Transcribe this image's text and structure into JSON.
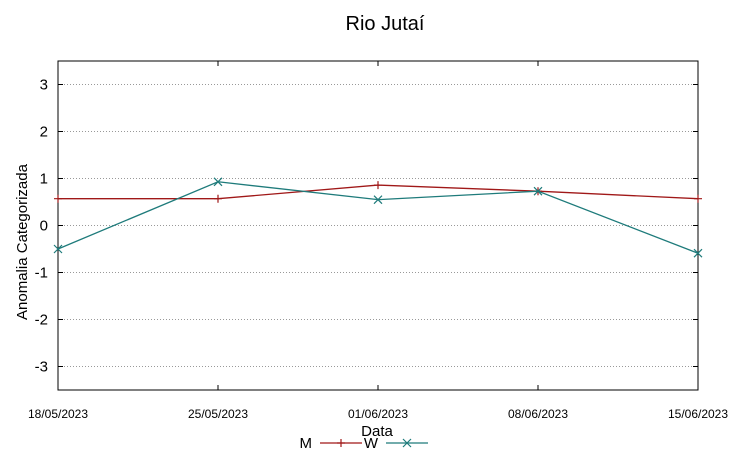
{
  "chart_data": {
    "type": "line",
    "title": "Rio Jutaí",
    "xlabel": "Data",
    "ylabel": "Anomalia Categorizada",
    "x_ticks": [
      "18/05/2023",
      "25/05/2023",
      "01/06/2023",
      "08/06/2023",
      "15/06/2023"
    ],
    "y_ticks": [
      3,
      2,
      1,
      0,
      -1,
      -2,
      -3
    ],
    "ylim": [
      -3.5,
      3.5
    ],
    "grid": "horizontal dotted",
    "legend_position": "bottom",
    "series": [
      {
        "name": "M",
        "color": "#a01818",
        "marker": "plus",
        "x": [
          "18/05/2023",
          "25/05/2023",
          "01/06/2023",
          "08/06/2023",
          "15/06/2023"
        ],
        "y": [
          0.57,
          0.57,
          0.86,
          0.73,
          0.57
        ]
      },
      {
        "name": "W",
        "color": "#1e7b7b",
        "marker": "cross",
        "x": [
          "18/05/2023",
          "25/05/2023",
          "01/06/2023",
          "08/06/2023",
          "15/06/2023"
        ],
        "y": [
          -0.5,
          0.93,
          0.55,
          0.73,
          -0.59
        ]
      }
    ]
  }
}
